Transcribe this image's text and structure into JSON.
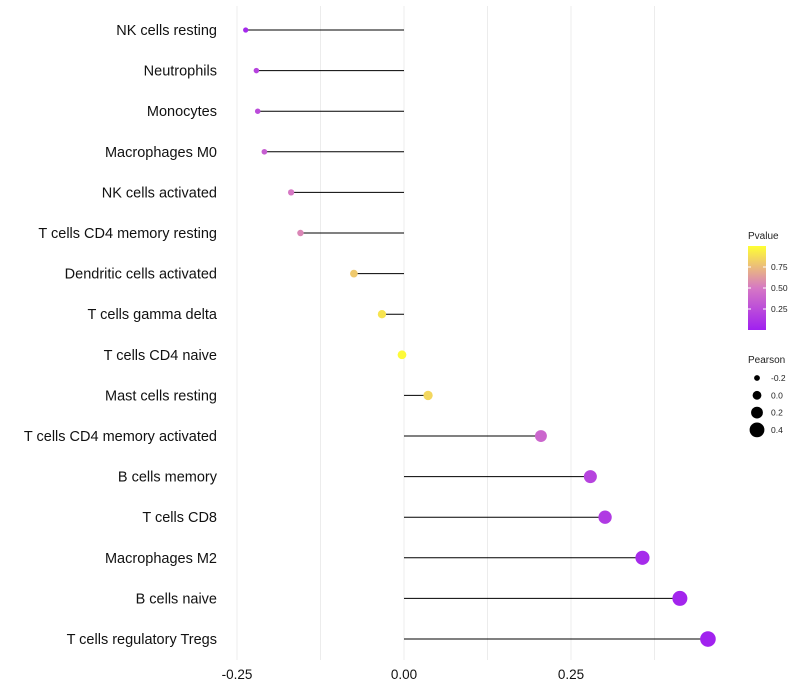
{
  "chart_data": {
    "type": "lollipop",
    "orientation": "horizontal",
    "categories": [
      "NK cells resting",
      "Neutrophils",
      "Monocytes",
      "Macrophages M0",
      "NK cells activated",
      "T cells CD4 memory resting",
      "Dendritic cells activated",
      "T cells gamma delta",
      "T cells CD4 naive",
      "Mast cells resting",
      "T cells CD4 memory activated",
      "B cells memory",
      "T cells CD8",
      "Macrophages M2",
      "B cells naive",
      "T cells regulatory  Tregs"
    ],
    "pearson": [
      -0.237,
      -0.221,
      -0.219,
      -0.209,
      -0.169,
      -0.155,
      -0.075,
      -0.033,
      -0.003,
      0.036,
      0.205,
      0.279,
      0.301,
      0.357,
      0.413,
      0.455
    ],
    "pvalue": [
      0.05,
      0.2,
      0.25,
      0.35,
      0.5,
      0.55,
      0.8,
      0.9,
      0.98,
      0.85,
      0.4,
      0.2,
      0.15,
      0.06,
      0.03,
      0.01
    ],
    "x_ticks": [
      -0.25,
      0.0,
      0.25
    ],
    "x_tick_labels": [
      "-0.25",
      "0.00",
      "0.25"
    ],
    "xlim": [
      -0.25,
      0.5
    ],
    "grid": true,
    "legend_position": "right",
    "color_legend": {
      "title": "Pvalue",
      "range": [
        0,
        1
      ],
      "ticks": [
        0.75,
        0.5,
        0.25
      ],
      "tick_labels": [
        "0.75",
        "0.50",
        "0.25"
      ],
      "low_color": "#a020f0",
      "high_color": "#ffff00"
    },
    "size_legend": {
      "title": "Pearson",
      "values": [
        -0.2,
        0.0,
        0.2,
        0.4
      ],
      "labels": [
        "-0.2",
        "0.0",
        "0.2",
        "0.4"
      ]
    }
  }
}
